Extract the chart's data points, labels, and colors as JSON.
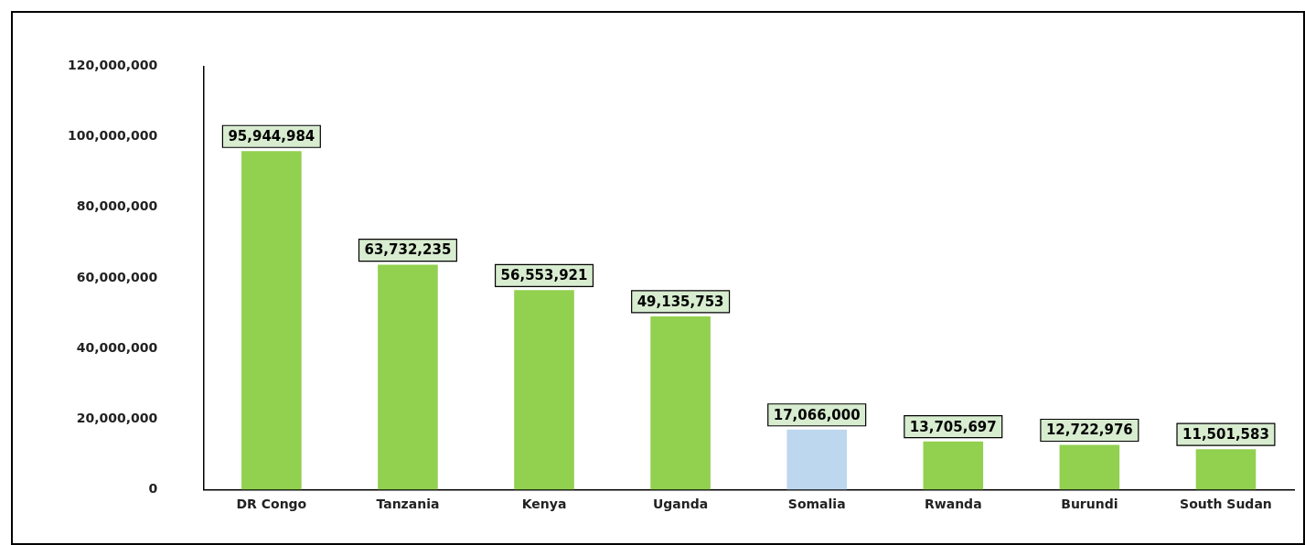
{
  "chart_data": {
    "type": "bar",
    "categories": [
      "DR Congo",
      "Tanzania",
      "Kenya",
      "Uganda",
      "Somalia",
      "Rwanda",
      "Burundi",
      "South Sudan"
    ],
    "values": [
      95944984,
      63732235,
      56553921,
      49135753,
      17066000,
      13705697,
      12722976,
      11501583
    ],
    "value_labels": [
      "95,944,984",
      "63,732,235",
      "56,553,921",
      "49,135,753",
      "17,066,000",
      "13,705,697",
      "12,722,976",
      "11,501,583"
    ],
    "colors": [
      "#92d050",
      "#92d050",
      "#92d050",
      "#92d050",
      "#bdd7ee",
      "#92d050",
      "#92d050",
      "#92d050"
    ],
    "ylim": [
      0,
      120000000
    ],
    "yticks": [
      0,
      {
        "value": 20000000,
        "label": "20,000,000"
      },
      {
        "value": 40000000,
        "label": "40,000,000"
      },
      {
        "value": 60000000,
        "label": "60,000,000"
      },
      {
        "value": 80000000,
        "label": "80,000,000"
      },
      {
        "value": 100000000,
        "label": "100,000,000"
      },
      {
        "value": 120000000,
        "label": "120,000,000"
      }
    ],
    "grid": false,
    "legend": false
  }
}
